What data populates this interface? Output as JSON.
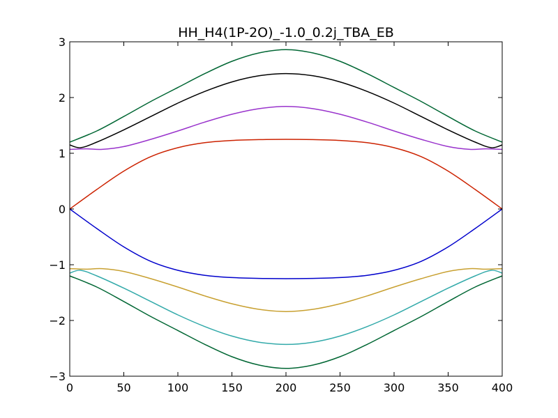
{
  "chart_data": {
    "type": "line",
    "title": "HH_H4(1P-2O)_-1.0_0.2j_TBA_EB",
    "xlabel": "",
    "ylabel": "",
    "xlim": [
      0,
      400
    ],
    "ylim": [
      -3,
      3
    ],
    "xticks": [
      0,
      50,
      100,
      150,
      200,
      250,
      300,
      350,
      400
    ],
    "yticks": [
      -3,
      -2,
      -1,
      0,
      1,
      2,
      3
    ],
    "xtick_labels": [
      "0",
      "50",
      "100",
      "150",
      "200",
      "250",
      "300",
      "350",
      "400"
    ],
    "ytick_labels": [
      "−3",
      "−2",
      "−1",
      "0",
      "1",
      "2",
      "3"
    ],
    "grid": false,
    "legend": "none",
    "series": [
      {
        "color": "#006633",
        "x": [
          0,
          25,
          50,
          75,
          100,
          125,
          150,
          175,
          200,
          225,
          250,
          275,
          300,
          325,
          350,
          375,
          400
        ],
        "values": [
          1.2,
          1.4,
          1.66,
          1.93,
          2.18,
          2.43,
          2.65,
          2.8,
          2.86,
          2.8,
          2.65,
          2.43,
          2.18,
          1.93,
          1.66,
          1.4,
          1.2
        ]
      },
      {
        "color": "#000000",
        "x": [
          0,
          10,
          25,
          50,
          75,
          100,
          125,
          150,
          175,
          200,
          225,
          250,
          275,
          300,
          325,
          350,
          375,
          390,
          400
        ],
        "values": [
          1.15,
          1.1,
          1.2,
          1.42,
          1.66,
          1.9,
          2.11,
          2.28,
          2.39,
          2.43,
          2.39,
          2.28,
          2.11,
          1.9,
          1.66,
          1.42,
          1.2,
          1.1,
          1.15
        ]
      },
      {
        "color": "#9933cc",
        "x": [
          0,
          15,
          30,
          50,
          75,
          100,
          125,
          150,
          175,
          200,
          225,
          250,
          275,
          300,
          325,
          350,
          370,
          385,
          400
        ],
        "values": [
          1.07,
          1.08,
          1.07,
          1.12,
          1.25,
          1.4,
          1.56,
          1.7,
          1.8,
          1.84,
          1.8,
          1.7,
          1.56,
          1.4,
          1.25,
          1.12,
          1.07,
          1.08,
          1.07
        ]
      },
      {
        "color": "#cc2200",
        "x": [
          0,
          25,
          50,
          75,
          100,
          125,
          150,
          175,
          200,
          225,
          250,
          275,
          300,
          325,
          350,
          375,
          400
        ],
        "values": [
          0,
          0.35,
          0.68,
          0.94,
          1.1,
          1.19,
          1.23,
          1.245,
          1.25,
          1.245,
          1.23,
          1.19,
          1.1,
          0.94,
          0.68,
          0.35,
          0
        ]
      },
      {
        "color": "#0000cc",
        "x": [
          0,
          25,
          50,
          75,
          100,
          125,
          150,
          175,
          200,
          225,
          250,
          275,
          300,
          325,
          350,
          375,
          400
        ],
        "values": [
          0,
          -0.35,
          -0.68,
          -0.94,
          -1.1,
          -1.19,
          -1.23,
          -1.245,
          -1.25,
          -1.245,
          -1.23,
          -1.19,
          -1.1,
          -0.94,
          -0.68,
          -0.35,
          0
        ]
      },
      {
        "color": "#c8a030",
        "x": [
          0,
          15,
          30,
          50,
          75,
          100,
          125,
          150,
          175,
          200,
          225,
          250,
          275,
          300,
          325,
          350,
          370,
          385,
          400
        ],
        "values": [
          -1.07,
          -1.08,
          -1.07,
          -1.12,
          -1.25,
          -1.4,
          -1.56,
          -1.7,
          -1.8,
          -1.84,
          -1.8,
          -1.7,
          -1.56,
          -1.4,
          -1.25,
          -1.12,
          -1.07,
          -1.08,
          -1.07
        ]
      },
      {
        "color": "#33aaaa",
        "x": [
          0,
          10,
          25,
          50,
          75,
          100,
          125,
          150,
          175,
          200,
          225,
          250,
          275,
          300,
          325,
          350,
          375,
          390,
          400
        ],
        "values": [
          -1.15,
          -1.1,
          -1.2,
          -1.42,
          -1.66,
          -1.9,
          -2.11,
          -2.28,
          -2.39,
          -2.43,
          -2.39,
          -2.28,
          -2.11,
          -1.9,
          -1.66,
          -1.42,
          -1.2,
          -1.1,
          -1.15
        ]
      },
      {
        "color": "#006633",
        "x": [
          0,
          25,
          50,
          75,
          100,
          125,
          150,
          175,
          200,
          225,
          250,
          275,
          300,
          325,
          350,
          375,
          400
        ],
        "values": [
          -1.2,
          -1.4,
          -1.66,
          -1.93,
          -2.18,
          -2.43,
          -2.65,
          -2.8,
          -2.86,
          -2.8,
          -2.65,
          -2.43,
          -2.18,
          -1.93,
          -1.66,
          -1.4,
          -1.2
        ]
      }
    ]
  }
}
